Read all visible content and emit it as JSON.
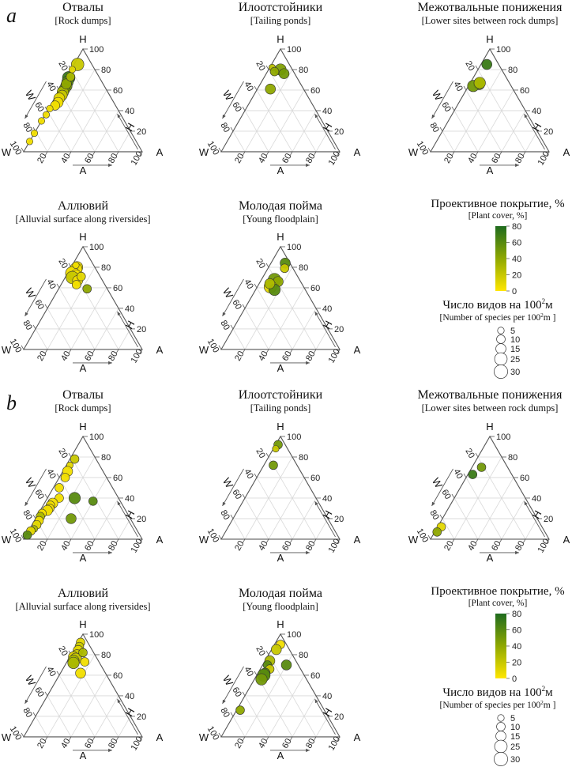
{
  "sections": [
    {
      "letter": "a",
      "panels": [
        {
          "title": "Отвалы",
          "subtitle": "[Rock dumps]",
          "points": [
            {
              "h": 72,
              "w": 26,
              "a": 2,
              "cover": 70,
              "species": 25
            },
            {
              "h": 68,
              "w": 29,
              "a": 3,
              "cover": 60,
              "species": 20
            },
            {
              "h": 64,
              "w": 32,
              "a": 4,
              "cover": 50,
              "species": 20
            },
            {
              "h": 61,
              "w": 35,
              "a": 4,
              "cover": 45,
              "species": 18
            },
            {
              "h": 58,
              "w": 38,
              "a": 4,
              "cover": 30,
              "species": 20
            },
            {
              "h": 55,
              "w": 40,
              "a": 5,
              "cover": 20,
              "species": 15
            },
            {
              "h": 52,
              "w": 44,
              "a": 4,
              "cover": 10,
              "species": 18
            },
            {
              "h": 48,
              "w": 47,
              "a": 5,
              "cover": 5,
              "species": 15
            },
            {
              "h": 45,
              "w": 51,
              "a": 4,
              "cover": 5,
              "species": 12
            },
            {
              "h": 66,
              "w": 31,
              "a": 3,
              "cover": 40,
              "species": 15
            },
            {
              "h": 73,
              "w": 24,
              "a": 3,
              "cover": 30,
              "species": 10
            },
            {
              "h": 85,
              "w": 12,
              "a": 3,
              "cover": 20,
              "species": 25
            },
            {
              "h": 80,
              "w": 19,
              "a": 1,
              "cover": 10,
              "species": 5
            },
            {
              "h": 42,
              "w": 57,
              "a": 1,
              "cover": 5,
              "species": 5
            },
            {
              "h": 36,
              "w": 63,
              "a": 1,
              "cover": 5,
              "species": 5
            },
            {
              "h": 30,
              "w": 70,
              "a": 0,
              "cover": 5,
              "species": 5
            },
            {
              "h": 18,
              "w": 82,
              "a": 0,
              "cover": 5,
              "species": 5
            },
            {
              "h": 10,
              "w": 90,
              "a": 0,
              "cover": 5,
              "species": 5
            }
          ]
        },
        {
          "title": "Илоотстойники",
          "subtitle": "[Tailing ponds]",
          "points": [
            {
              "h": 80,
              "w": 10,
              "a": 10,
              "cover": 45,
              "species": 20
            },
            {
              "h": 76,
              "w": 9,
              "a": 15,
              "cover": 50,
              "species": 15
            },
            {
              "h": 82,
              "w": 16,
              "a": 2,
              "cover": 25,
              "species": 5
            },
            {
              "h": 78,
              "w": 16,
              "a": 6,
              "cover": 40,
              "species": 10
            },
            {
              "h": 61,
              "w": 28,
              "a": 11,
              "cover": 40,
              "species": 15
            }
          ]
        },
        {
          "title": "Межотвальные понижения",
          "subtitle": "[Lower sites between rock dumps]",
          "points": [
            {
              "h": 85,
              "w": 10,
              "a": 5,
              "cover": 70,
              "species": 15
            },
            {
              "h": 66,
              "w": 26,
              "a": 8,
              "cover": 50,
              "species": 20
            },
            {
              "h": 64,
              "w": 32,
              "a": 4,
              "cover": 50,
              "species": 20
            },
            {
              "h": 67,
              "w": 25,
              "a": 8,
              "cover": 30,
              "species": 20
            }
          ]
        },
        {
          "title": "Аллювий",
          "subtitle": "[Alluvial surface along riversides]",
          "points": [
            {
              "h": 80,
              "w": 15,
              "a": 5,
              "cover": 5,
              "species": 20
            },
            {
              "h": 78,
              "w": 17,
              "a": 5,
              "cover": 5,
              "species": 25
            },
            {
              "h": 74,
              "w": 22,
              "a": 4,
              "cover": 5,
              "species": 30
            },
            {
              "h": 72,
              "w": 20,
              "a": 8,
              "cover": 5,
              "species": 20
            },
            {
              "h": 70,
              "w": 24,
              "a": 6,
              "cover": 20,
              "species": 25
            },
            {
              "h": 67,
              "w": 21,
              "a": 12,
              "cover": 5,
              "species": 15
            },
            {
              "h": 71,
              "w": 16,
              "a": 13,
              "cover": 10,
              "species": 10
            },
            {
              "h": 63,
              "w": 24,
              "a": 13,
              "cover": 5,
              "species": 10
            },
            {
              "h": 59,
              "w": 17,
              "a": 24,
              "cover": 40,
              "species": 10
            },
            {
              "h": 82,
              "w": 15,
              "a": 3,
              "cover": 5,
              "species": 5
            }
          ]
        },
        {
          "title": "Молодая пойма",
          "subtitle": "[Young floodplain]",
          "points": [
            {
              "h": 84,
              "w": 4,
              "a": 12,
              "cover": 60,
              "species": 15
            },
            {
              "h": 79,
              "w": 7,
              "a": 14,
              "cover": 20,
              "species": 10
            },
            {
              "h": 68,
              "w": 21,
              "a": 11,
              "cover": 50,
              "species": 25
            },
            {
              "h": 66,
              "w": 19,
              "a": 15,
              "cover": 40,
              "species": 15
            },
            {
              "h": 61,
              "w": 28,
              "a": 11,
              "cover": 10,
              "species": 25
            },
            {
              "h": 58,
              "w": 26,
              "a": 16,
              "cover": 60,
              "species": 20
            },
            {
              "h": 64,
              "w": 27,
              "a": 9,
              "cover": 30,
              "species": 15
            }
          ]
        }
      ],
      "cover_legend": {
        "title": "Проективное покрытие, %",
        "subtitle": "[Plant cover, %]",
        "ticks": [
          "80",
          "60",
          "40",
          "20",
          "0"
        ]
      },
      "size_legend": {
        "title": "Число видов на 100",
        "title_sup": "2",
        "title_unit": "м",
        "subtitle": "[Number of species per 100",
        "subtitle_sup": "2",
        "subtitle_unit": "m ]",
        "values": [
          "5",
          "10",
          "15",
          "25",
          "30"
        ]
      }
    },
    {
      "letter": "b",
      "panels": [
        {
          "title": "Отвалы",
          "subtitle": "[Rock dumps]",
          "points": [
            {
              "h": 78,
              "w": 18,
              "a": 4,
              "cover": 20,
              "species": 10
            },
            {
              "h": 72,
              "w": 25,
              "a": 3,
              "cover": 10,
              "species": 5
            },
            {
              "h": 66,
              "w": 30,
              "a": 4,
              "cover": 5,
              "species": 15
            },
            {
              "h": 60,
              "w": 35,
              "a": 5,
              "cover": 5,
              "species": 10
            },
            {
              "h": 50,
              "w": 45,
              "a": 5,
              "cover": 5,
              "species": 10
            },
            {
              "h": 40,
              "w": 50,
              "a": 10,
              "cover": 5,
              "species": 10
            },
            {
              "h": 35,
              "w": 58,
              "a": 7,
              "cover": 5,
              "species": 15
            },
            {
              "h": 33,
              "w": 61,
              "a": 6,
              "cover": 5,
              "species": 10
            },
            {
              "h": 30,
              "w": 63,
              "a": 7,
              "cover": 5,
              "species": 10
            },
            {
              "h": 28,
              "w": 66,
              "a": 6,
              "cover": 5,
              "species": 15
            },
            {
              "h": 25,
              "w": 72,
              "a": 3,
              "cover": 5,
              "species": 10
            },
            {
              "h": 22,
              "w": 75,
              "a": 3,
              "cover": 30,
              "species": 10
            },
            {
              "h": 18,
              "w": 78,
              "a": 4,
              "cover": 5,
              "species": 10
            },
            {
              "h": 14,
              "w": 82,
              "a": 4,
              "cover": 10,
              "species": 10
            },
            {
              "h": 10,
              "w": 86,
              "a": 4,
              "cover": 30,
              "species": 5
            },
            {
              "h": 8,
              "w": 90,
              "a": 2,
              "cover": 10,
              "species": 10
            },
            {
              "h": 4,
              "w": 95,
              "a": 1,
              "cover": 60,
              "species": 10
            },
            {
              "h": 40,
              "w": 37,
              "a": 23,
              "cover": 60,
              "species": 20
            },
            {
              "h": 37,
              "w": 23,
              "a": 40,
              "cover": 60,
              "species": 10
            },
            {
              "h": 20,
              "w": 50,
              "a": 30,
              "cover": 50,
              "species": 15
            }
          ]
        },
        {
          "title": "Илоотстойники",
          "subtitle": "[Tailing ponds]",
          "points": [
            {
              "h": 92,
              "w": 6,
              "a": 2,
              "cover": 50,
              "species": 10
            },
            {
              "h": 88,
              "w": 10,
              "a": 2,
              "cover": 20,
              "species": 5
            },
            {
              "h": 72,
              "w": 20,
              "a": 8,
              "cover": 50,
              "species": 10
            }
          ]
        },
        {
          "title": "Межотвальные понижения",
          "subtitle": "[Lower sites between rock dumps]",
          "points": [
            {
              "h": 70,
              "w": 22,
              "a": 8,
              "cover": 50,
              "species": 10
            },
            {
              "h": 63,
              "w": 33,
              "a": 4,
              "cover": 70,
              "species": 10
            },
            {
              "h": 12,
              "w": 85,
              "a": 3,
              "cover": 10,
              "species": 10
            },
            {
              "h": 7,
              "w": 91,
              "a": 2,
              "cover": 40,
              "species": 10
            }
          ]
        },
        {
          "title": "Аллювий",
          "subtitle": "[Alluvial surface along riversides]",
          "points": [
            {
              "h": 92,
              "w": 6,
              "a": 2,
              "cover": 10,
              "species": 10
            },
            {
              "h": 88,
              "w": 9,
              "a": 3,
              "cover": 20,
              "species": 10
            },
            {
              "h": 84,
              "w": 12,
              "a": 4,
              "cover": 10,
              "species": 15
            },
            {
              "h": 80,
              "w": 15,
              "a": 5,
              "cover": 20,
              "species": 15
            },
            {
              "h": 78,
              "w": 19,
              "a": 3,
              "cover": 10,
              "species": 15
            },
            {
              "h": 76,
              "w": 18,
              "a": 6,
              "cover": 20,
              "species": 20
            },
            {
              "h": 74,
              "w": 21,
              "a": 5,
              "cover": 30,
              "species": 20
            },
            {
              "h": 72,
              "w": 22,
              "a": 6,
              "cover": 30,
              "species": 20
            },
            {
              "h": 82,
              "w": 9,
              "a": 9,
              "cover": 30,
              "species": 10
            },
            {
              "h": 73,
              "w": 12,
              "a": 15,
              "cover": 5,
              "species": 10
            },
            {
              "h": 62,
              "w": 21,
              "a": 17,
              "cover": 5,
              "species": 15
            }
          ]
        },
        {
          "title": "Молодая пойма",
          "subtitle": "[Young floodplain]",
          "points": [
            {
              "h": 90,
              "w": 5,
              "a": 5,
              "cover": 5,
              "species": 10
            },
            {
              "h": 85,
              "w": 11,
              "a": 4,
              "cover": 20,
              "species": 15
            },
            {
              "h": 74,
              "w": 22,
              "a": 4,
              "cover": 30,
              "species": 15
            },
            {
              "h": 70,
              "w": 26,
              "a": 4,
              "cover": 60,
              "species": 10
            },
            {
              "h": 66,
              "w": 26,
              "a": 8,
              "cover": 20,
              "species": 10
            },
            {
              "h": 62,
              "w": 32,
              "a": 6,
              "cover": 60,
              "species": 15
            },
            {
              "h": 60,
              "w": 34,
              "a": 6,
              "cover": 60,
              "species": 25
            },
            {
              "h": 56,
              "w": 38,
              "a": 6,
              "cover": 50,
              "species": 20
            },
            {
              "h": 70,
              "w": 10,
              "a": 20,
              "cover": 60,
              "species": 15
            },
            {
              "h": 26,
              "w": 71,
              "a": 3,
              "cover": 40,
              "species": 10
            }
          ]
        }
      ],
      "cover_legend": {
        "title": "Проективное покрытие, %",
        "subtitle": "[Plant cover, %]",
        "ticks": [
          "80",
          "60",
          "40",
          "20",
          "0"
        ]
      },
      "size_legend": {
        "title": "Число видов на 100",
        "title_sup": "2",
        "title_unit": "м",
        "subtitle": "[Number of species per 100",
        "subtitle_sup": "2",
        "subtitle_unit": "m ]",
        "values": [
          "5",
          "10",
          "15",
          "25",
          "30"
        ]
      }
    }
  ],
  "axes": {
    "corner_h": "H",
    "corner_w": "W",
    "corner_a": "A",
    "label_w": "W",
    "label_h": "H",
    "label_a": "A",
    "ticks": [
      "20",
      "40",
      "60",
      "80",
      "100"
    ]
  },
  "colors": {
    "cover_low": "#FFE600",
    "cover_mid": "#8FA800",
    "cover_high": "#1E6B1E",
    "axis": "#555555",
    "grid": "#d9d9d9"
  },
  "chart_data": {
    "type": "ternary-scatter",
    "axes": [
      "H",
      "W",
      "A"
    ],
    "point_fields": {
      "h": "H %",
      "w": "W %",
      "a": "A %",
      "cover": "Проективное покрытие, %",
      "species": "Число видов на 100 м²"
    },
    "cover_range": [
      0,
      80
    ],
    "species_legend": [
      5,
      10,
      15,
      25,
      30
    ]
  }
}
